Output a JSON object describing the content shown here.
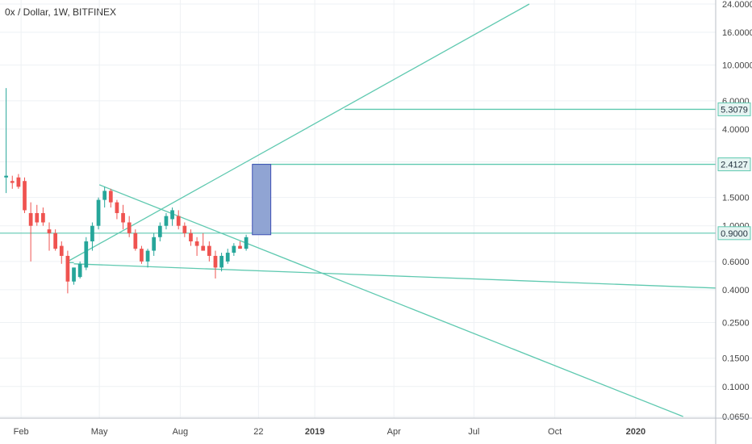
{
  "header": {
    "title": "0x / Dollar, 1W, BITFINEX"
  },
  "colors": {
    "up": "#26a69a",
    "down": "#ef5350",
    "trendline": "#5fc9b0",
    "grid": "#eef1f4",
    "axis_line": "#b8bec6",
    "box_fill": "#8a9fd1",
    "box_stroke": "#3f51b5",
    "badge_fill": "#e6f4f2",
    "badge_stroke": "#5fc9b0"
  },
  "chart_data": {
    "type": "candlestick",
    "title": "0x / Dollar, 1W, BITFINEX",
    "y_scale": "log",
    "ylim": [
      0.065,
      24
    ],
    "x_range": [
      "2018-01-08",
      "2020-04-01"
    ],
    "y_ticks": [
      {
        "value": 24,
        "label": "24.0000"
      },
      {
        "value": 16,
        "label": "16.0000"
      },
      {
        "value": 10,
        "label": "10.0000"
      },
      {
        "value": 6,
        "label": "6.0000"
      },
      {
        "value": 4,
        "label": "4.0000"
      },
      {
        "value": 2.5,
        "label": "2.5000"
      },
      {
        "value": 1.5,
        "label": "1.5000"
      },
      {
        "value": 1.0,
        "label": "1.0000"
      },
      {
        "value": 0.6,
        "label": "0.6000"
      },
      {
        "value": 0.4,
        "label": "0.4000"
      },
      {
        "value": 0.25,
        "label": "0.2500"
      },
      {
        "value": 0.15,
        "label": "0.1500"
      },
      {
        "value": 0.1,
        "label": "0.1000"
      },
      {
        "value": 0.065,
        "label": "0.0650"
      }
    ],
    "x_ticks": [
      {
        "date": "2018-02-01",
        "label": "Feb",
        "bold": false
      },
      {
        "date": "2018-05-01",
        "label": "May",
        "bold": false
      },
      {
        "date": "2018-08-01",
        "label": "Aug",
        "bold": false
      },
      {
        "date": "2018-10-29",
        "label": "22",
        "bold": false
      },
      {
        "date": "2019-01-01",
        "label": "2019",
        "bold": true
      },
      {
        "date": "2019-04-01",
        "label": "Apr",
        "bold": false
      },
      {
        "date": "2019-07-01",
        "label": "Jul",
        "bold": false
      },
      {
        "date": "2019-10-01",
        "label": "Oct",
        "bold": false
      },
      {
        "date": "2020-01-01",
        "label": "2020",
        "bold": true
      }
    ],
    "candles": [
      {
        "date": "2018-01-15",
        "o": 2.0,
        "h": 7.2,
        "l": 1.6,
        "c": 2.05
      },
      {
        "date": "2018-01-22",
        "o": 1.9,
        "h": 2.05,
        "l": 1.7,
        "c": 1.85
      },
      {
        "date": "2018-01-29",
        "o": 2.0,
        "h": 2.1,
        "l": 1.7,
        "c": 1.75
      },
      {
        "date": "2018-02-05",
        "o": 1.9,
        "h": 2.0,
        "l": 1.2,
        "c": 1.25
      },
      {
        "date": "2018-02-12",
        "o": 1.2,
        "h": 1.4,
        "l": 0.6,
        "c": 1.0
      },
      {
        "date": "2018-02-19",
        "o": 1.2,
        "h": 1.35,
        "l": 1.0,
        "c": 1.05
      },
      {
        "date": "2018-02-26",
        "o": 1.2,
        "h": 1.3,
        "l": 1.0,
        "c": 1.05
      },
      {
        "date": "2018-03-05",
        "o": 0.95,
        "h": 1.05,
        "l": 0.7,
        "c": 0.9
      },
      {
        "date": "2018-03-12",
        "o": 0.9,
        "h": 0.95,
        "l": 0.7,
        "c": 0.72
      },
      {
        "date": "2018-03-19",
        "o": 0.75,
        "h": 0.8,
        "l": 0.58,
        "c": 0.65
      },
      {
        "date": "2018-03-26",
        "o": 0.65,
        "h": 0.7,
        "l": 0.38,
        "c": 0.45
      },
      {
        "date": "2018-04-02",
        "o": 0.45,
        "h": 0.55,
        "l": 0.43,
        "c": 0.55
      },
      {
        "date": "2018-04-09",
        "o": 0.48,
        "h": 0.6,
        "l": 0.47,
        "c": 0.58
      },
      {
        "date": "2018-04-16",
        "o": 0.55,
        "h": 0.85,
        "l": 0.53,
        "c": 0.8
      },
      {
        "date": "2018-04-23",
        "o": 0.8,
        "h": 1.05,
        "l": 0.7,
        "c": 1.0
      },
      {
        "date": "2018-04-30",
        "o": 1.0,
        "h": 1.5,
        "l": 0.95,
        "c": 1.45
      },
      {
        "date": "2018-05-07",
        "o": 1.45,
        "h": 1.75,
        "l": 1.3,
        "c": 1.65
      },
      {
        "date": "2018-05-14",
        "o": 1.65,
        "h": 1.7,
        "l": 1.3,
        "c": 1.4
      },
      {
        "date": "2018-05-21",
        "o": 1.4,
        "h": 1.45,
        "l": 1.1,
        "c": 1.2
      },
      {
        "date": "2018-05-28",
        "o": 1.2,
        "h": 1.35,
        "l": 0.95,
        "c": 1.05
      },
      {
        "date": "2018-06-04",
        "o": 1.05,
        "h": 1.15,
        "l": 0.85,
        "c": 0.9
      },
      {
        "date": "2018-06-11",
        "o": 0.9,
        "h": 0.95,
        "l": 0.7,
        "c": 0.72
      },
      {
        "date": "2018-06-18",
        "o": 0.72,
        "h": 0.75,
        "l": 0.58,
        "c": 0.6
      },
      {
        "date": "2018-06-25",
        "o": 0.6,
        "h": 0.72,
        "l": 0.55,
        "c": 0.7
      },
      {
        "date": "2018-07-02",
        "o": 0.7,
        "h": 0.9,
        "l": 0.65,
        "c": 0.85
      },
      {
        "date": "2018-07-09",
        "o": 0.85,
        "h": 1.05,
        "l": 0.8,
        "c": 1.0
      },
      {
        "date": "2018-07-16",
        "o": 1.0,
        "h": 1.2,
        "l": 0.95,
        "c": 1.15
      },
      {
        "date": "2018-07-23",
        "o": 1.1,
        "h": 1.3,
        "l": 1.0,
        "c": 1.25
      },
      {
        "date": "2018-07-30",
        "o": 1.15,
        "h": 1.25,
        "l": 0.95,
        "c": 1.0
      },
      {
        "date": "2018-08-06",
        "o": 1.0,
        "h": 1.05,
        "l": 0.85,
        "c": 0.9
      },
      {
        "date": "2018-08-13",
        "o": 0.9,
        "h": 0.95,
        "l": 0.75,
        "c": 0.8
      },
      {
        "date": "2018-08-20",
        "o": 0.8,
        "h": 0.85,
        "l": 0.65,
        "c": 0.75
      },
      {
        "date": "2018-08-27",
        "o": 0.75,
        "h": 0.9,
        "l": 0.7,
        "c": 0.7
      },
      {
        "date": "2018-09-03",
        "o": 0.75,
        "h": 0.8,
        "l": 0.6,
        "c": 0.65
      },
      {
        "date": "2018-09-10",
        "o": 0.65,
        "h": 0.7,
        "l": 0.47,
        "c": 0.55
      },
      {
        "date": "2018-09-17",
        "o": 0.55,
        "h": 0.68,
        "l": 0.52,
        "c": 0.65
      },
      {
        "date": "2018-09-24",
        "o": 0.6,
        "h": 0.72,
        "l": 0.58,
        "c": 0.68
      },
      {
        "date": "2018-10-01",
        "o": 0.68,
        "h": 0.78,
        "l": 0.65,
        "c": 0.75
      },
      {
        "date": "2018-10-08",
        "o": 0.75,
        "h": 0.8,
        "l": 0.72,
        "c": 0.72
      },
      {
        "date": "2018-10-15",
        "o": 0.72,
        "h": 0.88,
        "l": 0.7,
        "c": 0.85
      }
    ],
    "trendlines": [
      {
        "from": {
          "date": "2018-03-26",
          "value": 0.6
        },
        "to": {
          "date": "2019-09-02",
          "value": 24
        }
      },
      {
        "from": {
          "date": "2018-05-01",
          "value": 1.8
        },
        "to": {
          "date": "2020-02-24",
          "value": 0.065
        }
      },
      {
        "from": {
          "date": "2018-04-02",
          "value": 0.58
        },
        "to": {
          "date": "2020-04-01",
          "value": 0.41
        }
      },
      {
        "from": {
          "date": "2018-03-26",
          "value": 0.59
        },
        "to": {
          "date": "2018-04-02",
          "value": 0.59
        }
      },
      {
        "from": {
          "date": "2018-10-22",
          "value": 2.4127
        },
        "to": {
          "date": "2020-04-01",
          "value": 2.4127
        }
      },
      {
        "from": {
          "date": "2019-02-04",
          "value": 5.3079
        },
        "to": {
          "date": "2020-04-01",
          "value": 5.3079
        }
      }
    ],
    "full_width_lines": [
      {
        "value": 0.9
      }
    ],
    "target_box": {
      "from_date": "2018-10-22",
      "to_date": "2018-11-12",
      "bottom": 0.88,
      "top": 2.4127
    },
    "price_badges": [
      {
        "value": 5.3079,
        "label": "5.3079"
      },
      {
        "value": 2.4127,
        "label": "2.4127"
      },
      {
        "value": 0.9,
        "label": "0.9000"
      }
    ]
  }
}
